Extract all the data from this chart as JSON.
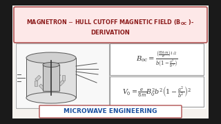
{
  "title_line1": "MAGNETRON – HULL CUTOFF MAGNETIC FIELD (B",
  "title_sub": "OC",
  "title_line1_end": " )-",
  "title_line2": "DERIVATION",
  "footer": "MICROWAVE ENGINEERING",
  "bg_color": "#1a1a1a",
  "outer_bg": "#1a1a1a",
  "inner_bg": "#f5f2ee",
  "title_bg": "#fde8e8",
  "title_border": "#b05050",
  "title_color": "#8b1a1a",
  "formula_border": "#999999",
  "formula_bg": "#ffffff",
  "footer_bg": "#ffffff",
  "footer_border": "#b05050",
  "footer_color": "#1a4fa0",
  "diagram_bg": "#eeeeee",
  "diagram_border": "#aaaaaa",
  "text_color": "#333333"
}
